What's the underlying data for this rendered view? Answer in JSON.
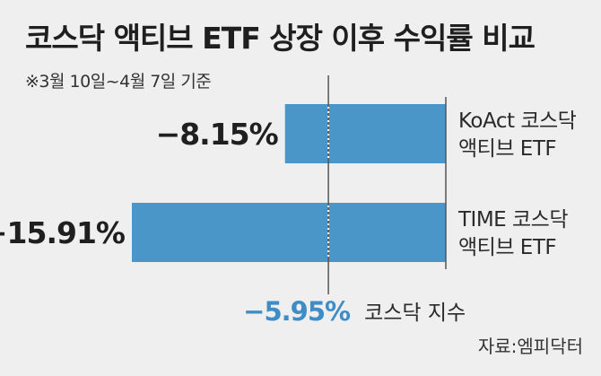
{
  "title": "코스닥 액티브 ETF 상장 이후 수익률 비교",
  "subtitle": "※3월 10일~4월 7일 기준",
  "source": "자료:엠피닥터",
  "colors": {
    "bar": "#4b96c9",
    "reference": "#3e8dc6",
    "text": "#1f1f1f",
    "background": "#efefef"
  },
  "chart_data": {
    "type": "bar",
    "orientation": "horizontal",
    "categories": [
      "KoAct 코스닥 액티브 ETF",
      "TIME 코스닥 액티브 ETF"
    ],
    "category_lines": [
      [
        "KoAct 코스닥",
        "액티브 ETF"
      ],
      [
        "TIME 코스닥",
        "액티브 ETF"
      ]
    ],
    "values": [
      -8.15,
      -15.91
    ],
    "value_labels": [
      "−8.15%",
      "−15.91%"
    ],
    "reference": {
      "value": -5.95,
      "label": "−5.95%",
      "name": "코스닥 지수",
      "style": "dotted"
    },
    "xlim": [
      -16,
      0
    ],
    "grid": false,
    "legend": "none"
  }
}
